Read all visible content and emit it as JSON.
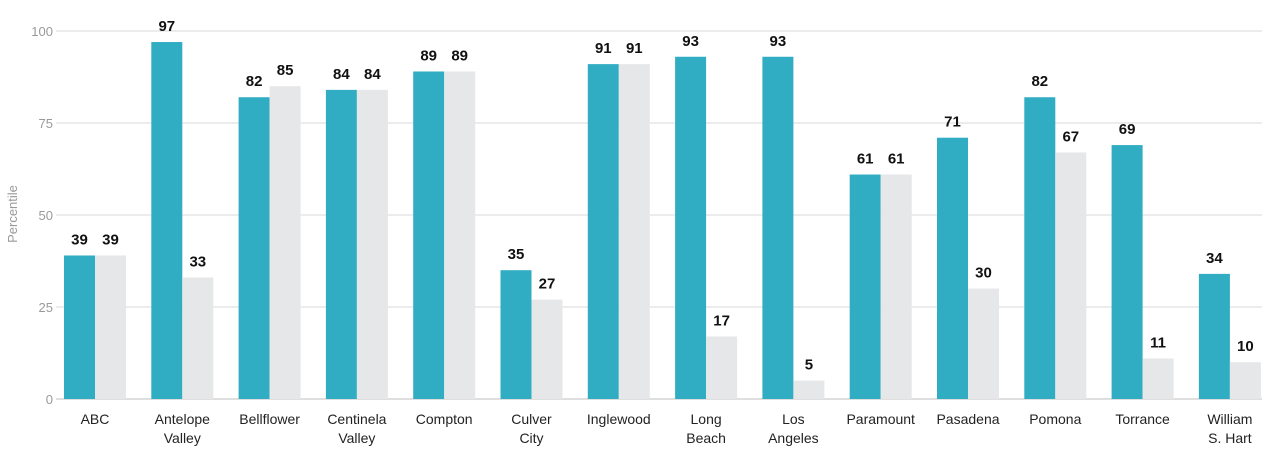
{
  "chart_data": {
    "type": "bar",
    "ylabel": "Percentile",
    "ylim": [
      0,
      100
    ],
    "yticks": [
      0,
      25,
      50,
      75,
      100
    ],
    "grid": true,
    "categories": [
      [
        "ABC"
      ],
      [
        "Antelope",
        "Valley"
      ],
      [
        "Bellflower"
      ],
      [
        "Centinela",
        "Valley"
      ],
      [
        "Compton"
      ],
      [
        "Culver",
        "City"
      ],
      [
        "Inglewood"
      ],
      [
        "Long",
        "Beach"
      ],
      [
        "Los",
        "Angeles"
      ],
      [
        "Paramount"
      ],
      [
        "Pasadena"
      ],
      [
        "Pomona"
      ],
      [
        "Torrance"
      ],
      [
        "William",
        "S. Hart"
      ]
    ],
    "series": [
      {
        "color": "#31adc3",
        "values": [
          39,
          97,
          82,
          84,
          89,
          35,
          91,
          93,
          93,
          61,
          71,
          82,
          69,
          34
        ]
      },
      {
        "color": "#e6e7e8",
        "values": [
          39,
          33,
          85,
          84,
          89,
          27,
          91,
          17,
          5,
          61,
          30,
          67,
          11,
          10
        ]
      }
    ]
  }
}
